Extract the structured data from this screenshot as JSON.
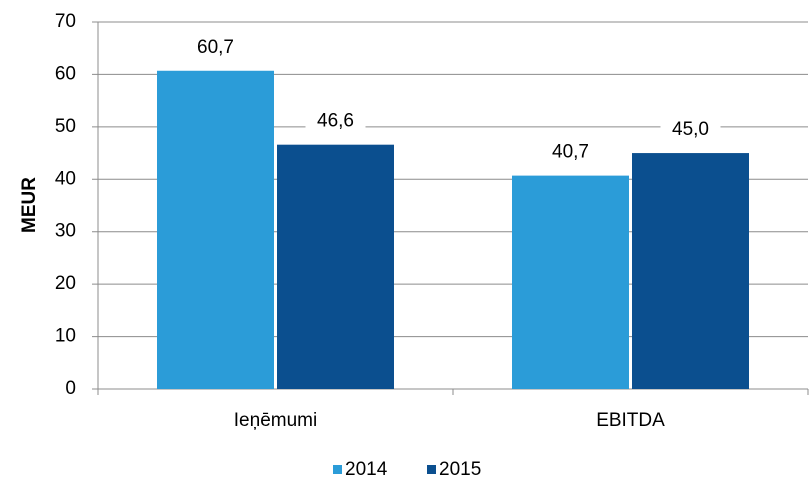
{
  "chart_data": {
    "type": "bar",
    "ylabel": "MEUR",
    "categories": [
      "Ieņēmumi",
      "EBITDA"
    ],
    "series": [
      {
        "name": "2014",
        "color": "#2b9cd8",
        "values": [
          60.7,
          40.7
        ],
        "value_labels": [
          "60,7",
          "40,7"
        ]
      },
      {
        "name": "2015",
        "color": "#0b4f8f",
        "values": [
          46.6,
          45
        ],
        "value_labels": [
          "46,6",
          "45,0"
        ]
      }
    ],
    "ylim": [
      0,
      70
    ],
    "yticks": [
      0,
      10,
      20,
      30,
      40,
      50,
      60,
      70
    ],
    "grid": true,
    "legend": "bottom"
  }
}
